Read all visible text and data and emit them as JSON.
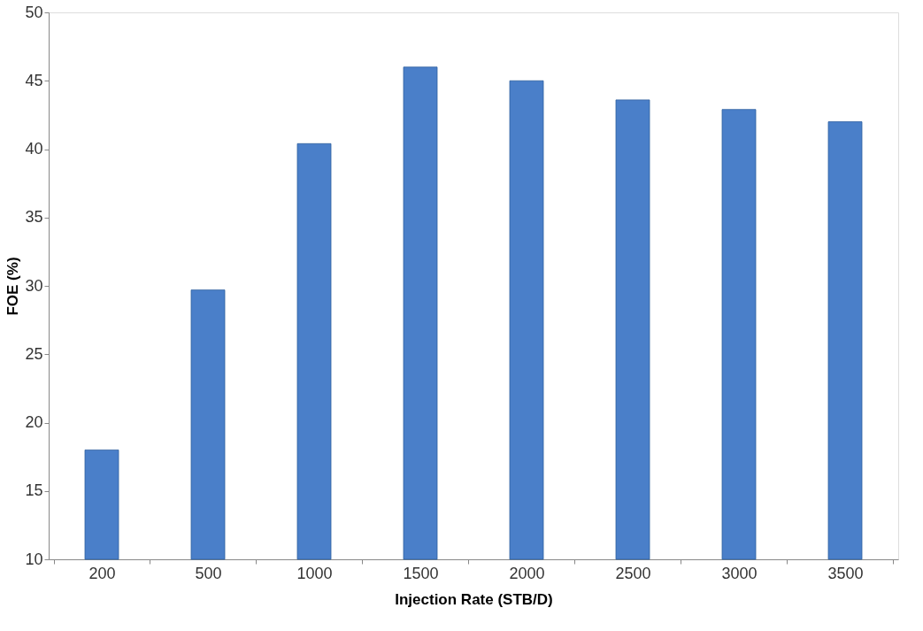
{
  "chart_data": {
    "type": "bar",
    "xlabel": "Injection Rate (STB/D)",
    "ylabel": "FOE (%)",
    "categories": [
      "200",
      "500",
      "1000",
      "1500",
      "2000",
      "2500",
      "3000",
      "3500"
    ],
    "values": [
      18,
      29.7,
      40.4,
      46,
      45,
      43.6,
      42.9,
      42
    ],
    "color": "#4a7fc9",
    "ylim": [
      10,
      50
    ],
    "yticks": [
      10,
      15,
      20,
      25,
      30,
      35,
      40,
      45,
      50
    ],
    "grid": false
  }
}
